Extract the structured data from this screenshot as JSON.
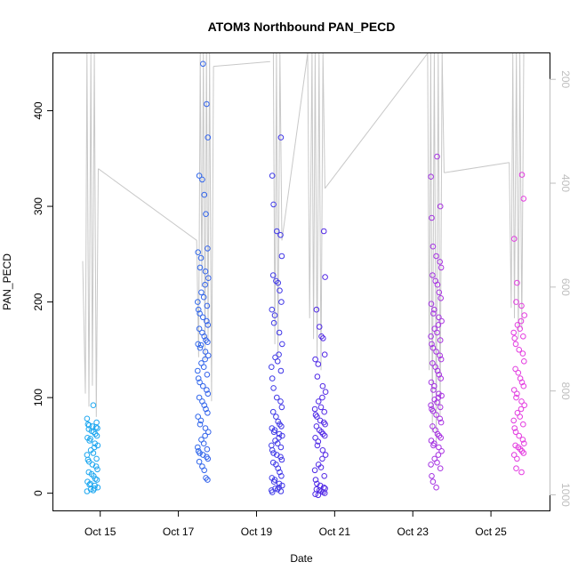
{
  "chart_data": {
    "type": "scatter",
    "title": "ATOM3 Northbound PAN_PECD",
    "xlabel": "Date",
    "ylabel": "PAN_PECD",
    "xlim": [
      13.8,
      26.5
    ],
    "ylim": [
      -18,
      460
    ],
    "y2lim": [
      1030,
      150
    ],
    "x_ticks": [
      15,
      17,
      19,
      21,
      23,
      25
    ],
    "x_tick_labels": [
      "Oct 15",
      "Oct 17",
      "Oct 19",
      "Oct 21",
      "Oct 23",
      "Oct 25"
    ],
    "y_ticks": [
      0,
      100,
      200,
      300,
      400
    ],
    "y_tick_labels": [
      "0",
      "100",
      "200",
      "300",
      "400"
    ],
    "y2_ticks": [
      200,
      400,
      600,
      800,
      1000
    ],
    "y2_tick_labels": [
      "200",
      "400",
      "600",
      "800",
      "1000"
    ],
    "point_color_start": "#1ea8f0",
    "point_color_end": "#e43ce0",
    "line_color": "#c8c8c8",
    "point_series": [
      {
        "date": 14.8,
        "values": [
          2,
          3,
          4,
          5,
          6,
          8,
          9,
          10,
          12,
          14,
          15,
          18,
          20,
          22,
          25,
          28,
          30,
          33,
          35,
          36,
          40,
          42,
          45,
          48,
          50,
          52,
          55,
          57,
          58,
          60,
          62,
          64,
          65,
          67,
          68,
          69,
          70,
          71,
          72,
          74,
          78,
          92
        ]
      },
      {
        "date": 17.63,
        "values": [
          14,
          16,
          24,
          28,
          33,
          36,
          38,
          40,
          42,
          44,
          46,
          48,
          52,
          56,
          60,
          64,
          68,
          72,
          76,
          80,
          84,
          88,
          92,
          96,
          100,
          104,
          108,
          112,
          116,
          120,
          124,
          128,
          132,
          136,
          140,
          144,
          148,
          152,
          155,
          156,
          158,
          160,
          164,
          168,
          172,
          176,
          180,
          184,
          188,
          192,
          196,
          200,
          205,
          210,
          218,
          225,
          232,
          236,
          246,
          252,
          256,
          292,
          312,
          328,
          332,
          372,
          407,
          449
        ]
      },
      {
        "date": 19.52,
        "values": [
          1,
          2,
          3,
          4,
          5,
          6,
          8,
          10,
          12,
          14,
          16,
          18,
          22,
          26,
          30,
          32,
          35,
          38,
          40,
          42,
          45,
          48,
          50,
          52,
          55,
          58,
          60,
          62,
          64,
          66,
          68,
          70,
          72,
          75,
          80,
          85,
          90,
          96,
          100,
          110,
          120,
          128,
          132,
          138,
          142,
          145,
          156,
          168,
          178,
          186,
          192,
          200,
          212,
          220,
          222,
          228,
          248,
          270,
          274,
          302,
          332,
          372
        ]
      },
      {
        "date": 20.63,
        "values": [
          -2,
          -1,
          0,
          1,
          2,
          3,
          4,
          5,
          6,
          8,
          10,
          14,
          18,
          24,
          27,
          30,
          36,
          40,
          45,
          50,
          54,
          58,
          60,
          62,
          64,
          66,
          70,
          72,
          74,
          76,
          80,
          82,
          85,
          88,
          90,
          96,
          100,
          106,
          112,
          122,
          135,
          140,
          145,
          162,
          164,
          174,
          192,
          226,
          274
        ]
      },
      {
        "date": 23.6,
        "values": [
          6,
          12,
          18,
          26,
          30,
          32,
          36,
          40,
          44,
          48,
          50,
          52,
          55,
          58,
          60,
          62,
          66,
          70,
          74,
          78,
          82,
          86,
          88,
          90,
          92,
          95,
          98,
          100,
          102,
          104,
          108,
          112,
          116,
          120,
          124,
          128,
          132,
          136,
          140,
          144,
          148,
          152,
          156,
          160,
          164,
          168,
          172,
          176,
          180,
          184,
          188,
          192,
          198,
          204,
          210,
          218,
          222,
          228,
          236,
          242,
          248,
          258,
          288,
          300,
          331,
          352
        ]
      },
      {
        "date": 25.72,
        "values": [
          22,
          26,
          36,
          40,
          42,
          44,
          46,
          48,
          50,
          52,
          56,
          60,
          64,
          68,
          72,
          76,
          80,
          84,
          88,
          92,
          96,
          100,
          104,
          108,
          112,
          116,
          120,
          126,
          130,
          138,
          146,
          150,
          156,
          162,
          164,
          168,
          172,
          176,
          180,
          186,
          196,
          200,
          220,
          266,
          308,
          333
        ]
      }
    ],
    "pressure_line": {
      "axis": "right",
      "segments": [
        {
          "x": [
            14.55,
            14.62,
            14.66,
            14.71,
            14.76,
            14.8,
            14.85,
            14.9,
            14.95
          ],
          "y": [
            550,
            805,
            150,
            830,
            150,
            790,
            150,
            850,
            372
          ]
        },
        {
          "x": [
            17.47,
            17.52,
            17.56,
            17.6,
            17.64,
            17.68,
            17.72,
            17.76,
            17.8,
            17.85,
            17.9
          ],
          "y": [
            510,
            735,
            150,
            600,
            150,
            740,
            150,
            700,
            150,
            820,
            175
          ]
        },
        {
          "x": [
            19.43,
            19.47,
            19.51,
            19.55,
            19.6,
            19.65
          ],
          "y": [
            150,
            710,
            150,
            740,
            150,
            510
          ]
        },
        {
          "x": [
            20.31,
            20.36,
            20.42,
            20.46,
            20.5,
            20.55,
            20.6,
            20.65,
            20.7,
            20.75
          ],
          "y": [
            150,
            660,
            150,
            700,
            150,
            735,
            150,
            760,
            150,
            410
          ]
        },
        {
          "x": [
            23.38,
            23.42,
            23.46,
            23.5,
            23.55,
            23.6,
            23.65,
            23.7,
            23.75,
            23.8
          ],
          "y": [
            150,
            760,
            150,
            880,
            150,
            900,
            150,
            850,
            150,
            380
          ]
        },
        {
          "x": [
            25.47,
            25.52,
            25.56,
            25.6,
            25.65,
            25.7,
            25.74,
            25.79,
            25.84
          ],
          "y": [
            360,
            640,
            150,
            660,
            150,
            700,
            150,
            680,
            150
          ]
        }
      ],
      "connectors": [
        {
          "x": [
            14.95,
            17.47
          ],
          "y": [
            372,
            510
          ]
        },
        {
          "x": [
            17.9,
            19.35
          ],
          "y": [
            175,
            166
          ]
        },
        {
          "x": [
            19.65,
            20.31
          ],
          "y": [
            510,
            150
          ]
        },
        {
          "x": [
            20.75,
            23.38
          ],
          "y": [
            410,
            150
          ]
        },
        {
          "x": [
            23.8,
            25.47
          ],
          "y": [
            380,
            360
          ]
        }
      ]
    }
  }
}
